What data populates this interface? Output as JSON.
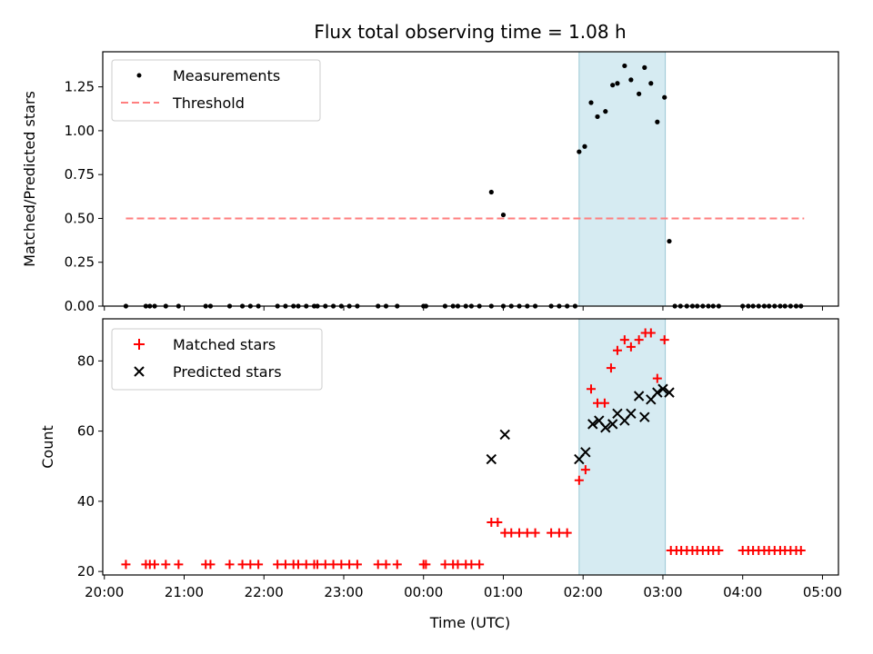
{
  "chart_data": {
    "title": "Flux total observing time = 1.08 h",
    "xlabel": "Time (UTC)",
    "x_ticks": [
      "20:00",
      "21:00",
      "22:00",
      "23:00",
      "00:00",
      "01:00",
      "02:00",
      "03:00",
      "04:00",
      "05:00"
    ],
    "x_range_hours": [
      19.98,
      29.2
    ],
    "shaded_interval_hours": [
      25.95,
      27.03
    ],
    "top": {
      "type": "scatter",
      "ylabel": "Matched/Predicted stars",
      "ylim": [
        0,
        1.45
      ],
      "y_ticks": [
        "0.00",
        "0.25",
        "0.50",
        "0.75",
        "1.00",
        "1.25"
      ],
      "threshold": {
        "value": 0.5,
        "x_range": [
          20.27,
          28.77
        ]
      },
      "legend": [
        "Measurements",
        "Threshold"
      ],
      "series": [
        {
          "name": "Measurements",
          "x": [
            20.27,
            20.52,
            20.57,
            20.63,
            20.77,
            20.93,
            21.27,
            21.33,
            21.57,
            21.73,
            21.83,
            21.93,
            22.17,
            22.27,
            22.37,
            22.43,
            22.53,
            22.63,
            22.67,
            22.77,
            22.87,
            22.97,
            23.07,
            23.17,
            23.43,
            23.53,
            23.67,
            24.0,
            24.03,
            24.27,
            24.37,
            24.43,
            24.53,
            24.6,
            24.7,
            24.85,
            25.0,
            25.1,
            25.2,
            25.3,
            25.4,
            25.6,
            25.7,
            25.8,
            25.9,
            25.95,
            26.02,
            26.1,
            26.18,
            26.28,
            26.37,
            26.43,
            26.52,
            26.6,
            26.7,
            26.77,
            26.85,
            26.93,
            27.02,
            27.08,
            27.15,
            27.22,
            27.3,
            27.37,
            27.43,
            27.5,
            27.57,
            27.63,
            27.7,
            28.0,
            28.07,
            28.13,
            28.2,
            28.27,
            28.33,
            28.4,
            28.47,
            28.53,
            28.6,
            28.67,
            28.73,
            24.85,
            25.0
          ],
          "y": [
            0,
            0,
            0,
            0,
            0,
            0,
            0,
            0,
            0,
            0,
            0,
            0,
            0,
            0,
            0,
            0,
            0,
            0,
            0,
            0,
            0,
            0,
            0,
            0,
            0,
            0,
            0,
            0,
            0,
            0,
            0,
            0,
            0,
            0,
            0,
            0,
            0,
            0,
            0,
            0,
            0,
            0,
            0,
            0,
            0,
            0.88,
            0.91,
            1.16,
            1.08,
            1.11,
            1.26,
            1.27,
            1.37,
            1.29,
            1.21,
            1.36,
            1.27,
            1.05,
            1.19,
            0.37,
            0,
            0,
            0,
            0,
            0,
            0,
            0,
            0,
            0,
            0,
            0,
            0,
            0,
            0,
            0,
            0,
            0,
            0,
            0,
            0,
            0,
            0.65,
            0.52
          ]
        }
      ]
    },
    "bottom": {
      "type": "scatter",
      "ylabel": "Count",
      "ylim": [
        19,
        92
      ],
      "y_ticks": [
        "20",
        "40",
        "60",
        "80"
      ],
      "legend": [
        "Matched stars",
        "Predicted stars"
      ],
      "series": [
        {
          "name": "Matched stars",
          "x": [
            20.27,
            20.52,
            20.57,
            20.63,
            20.77,
            20.93,
            21.27,
            21.33,
            21.57,
            21.73,
            21.83,
            21.93,
            22.17,
            22.27,
            22.37,
            22.43,
            22.53,
            22.63,
            22.67,
            22.77,
            22.87,
            22.97,
            23.07,
            23.17,
            23.43,
            23.53,
            23.67,
            24.0,
            24.03,
            24.27,
            24.37,
            24.43,
            24.53,
            24.6,
            24.7,
            24.85,
            24.93,
            25.02,
            25.1,
            25.2,
            25.3,
            25.4,
            25.6,
            25.7,
            25.8,
            25.95,
            26.03,
            26.1,
            26.18,
            26.27,
            26.35,
            26.43,
            26.52,
            26.6,
            26.7,
            26.78,
            26.85,
            26.93,
            27.02,
            27.1,
            27.17,
            27.23,
            27.3,
            27.37,
            27.43,
            27.5,
            27.57,
            27.63,
            27.7,
            28.0,
            28.07,
            28.13,
            28.2,
            28.27,
            28.33,
            28.4,
            28.47,
            28.53,
            28.6,
            28.67,
            28.73
          ],
          "y": [
            22,
            22,
            22,
            22,
            22,
            22,
            22,
            22,
            22,
            22,
            22,
            22,
            22,
            22,
            22,
            22,
            22,
            22,
            22,
            22,
            22,
            22,
            22,
            22,
            22,
            22,
            22,
            22,
            22,
            22,
            22,
            22,
            22,
            22,
            22,
            34,
            34,
            31,
            31,
            31,
            31,
            31,
            31,
            31,
            31,
            46,
            49,
            72,
            68,
            68,
            78,
            83,
            86,
            84,
            86,
            88,
            88,
            75,
            86,
            26,
            26,
            26,
            26,
            26,
            26,
            26,
            26,
            26,
            26,
            26,
            26,
            26,
            26,
            26,
            26,
            26,
            26,
            26,
            26,
            26,
            26
          ]
        },
        {
          "name": "Predicted stars",
          "x": [
            24.85,
            25.02,
            25.95,
            26.03,
            26.12,
            26.2,
            26.28,
            26.37,
            26.43,
            26.52,
            26.6,
            26.7,
            26.77,
            26.85,
            26.93,
            27.0,
            27.08
          ],
          "y": [
            52,
            59,
            52,
            54,
            62,
            63,
            61,
            62,
            65,
            63,
            65,
            70,
            64,
            69,
            71,
            72,
            71
          ]
        }
      ]
    }
  }
}
